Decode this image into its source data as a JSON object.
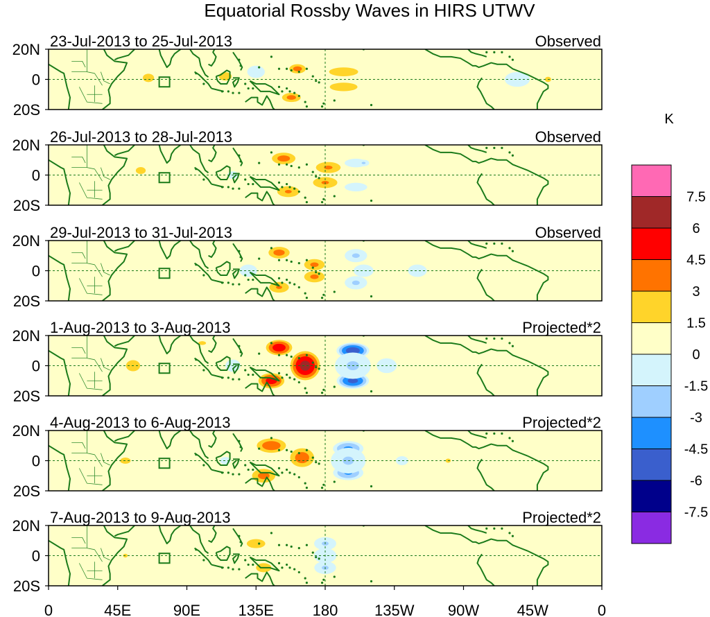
{
  "chart_data": {
    "type": "heatmap",
    "title": "Equatorial Rossby Waves in HIRS UTWV",
    "colorbar_unit": "K",
    "x_ticks": [
      "0",
      "45E",
      "90E",
      "135E",
      "180",
      "135W",
      "90W",
      "45W",
      "0"
    ],
    "x_tick_values": [
      0,
      45,
      90,
      135,
      180,
      225,
      270,
      315,
      360
    ],
    "y_ticks": [
      "20N",
      "0",
      "20S"
    ],
    "y_tick_values": [
      20,
      0,
      -20
    ],
    "xlim": [
      0,
      360
    ],
    "ylim": [
      -20,
      20
    ],
    "colorbar": {
      "labels": [
        "7.5",
        "6",
        "4.5",
        "3",
        "1.5",
        "0",
        "-1.5",
        "-3",
        "-4.5",
        "-6",
        "-7.5"
      ],
      "levels": [
        -7.5,
        -6,
        -4.5,
        -3,
        -1.5,
        0,
        1.5,
        3,
        4.5,
        6,
        7.5
      ],
      "colors": [
        "#8a2be2",
        "#00008b",
        "#3a5fcd",
        "#1e90ff",
        "#9fcfff",
        "#d4f4fc",
        "#ffffc8",
        "#ffd42a",
        "#ff7300",
        "#ff0000",
        "#a02828",
        "#ff69b4"
      ]
    },
    "panels": [
      {
        "period": "23-Jul-2013 to 25-Jul-2013",
        "kind": "Observed",
        "blobs": [
          {
            "lon": 162,
            "lat": 7,
            "value": 3.6,
            "w": 7,
            "h": 4
          },
          {
            "lon": 158,
            "lat": -12,
            "value": 3.5,
            "w": 8,
            "h": 4
          },
          {
            "lon": 192,
            "lat": 5,
            "value": 2.3,
            "w": 16,
            "h": 5
          },
          {
            "lon": 192,
            "lat": -5,
            "value": 2.2,
            "w": 16,
            "h": 5
          },
          {
            "lon": 65,
            "lat": 1,
            "value": 1.9,
            "w": 8,
            "h": 6
          },
          {
            "lon": 115,
            "lat": 2,
            "value": 1.7,
            "w": 12,
            "h": 8
          },
          {
            "lon": 135,
            "lat": 5,
            "value": -1.8,
            "w": 14,
            "h": 10
          },
          {
            "lon": 305,
            "lat": 0,
            "value": -1.8,
            "w": 20,
            "h": 12
          },
          {
            "lon": 30,
            "lat": 0,
            "value": -1.0,
            "w": 22,
            "h": 16
          },
          {
            "lon": 260,
            "lat": 10,
            "value": -1.0,
            "w": 30,
            "h": 8
          },
          {
            "lon": 325,
            "lat": 0,
            "value": 1.7,
            "w": 6,
            "h": 5
          }
        ]
      },
      {
        "period": "26-Jul-2013 to 28-Jul-2013",
        "kind": "Observed",
        "blobs": [
          {
            "lon": 153,
            "lat": 11,
            "value": 3.6,
            "w": 10,
            "h": 5
          },
          {
            "lon": 182,
            "lat": 5,
            "value": 3.2,
            "w": 11,
            "h": 5
          },
          {
            "lon": 180,
            "lat": -5,
            "value": 3.1,
            "w": 11,
            "h": 5
          },
          {
            "lon": 156,
            "lat": -11,
            "value": 3.1,
            "w": 10,
            "h": 5
          },
          {
            "lon": 200,
            "lat": 8,
            "value": -1.8,
            "w": 18,
            "h": 7
          },
          {
            "lon": 200,
            "lat": -8,
            "value": -1.8,
            "w": 18,
            "h": 7
          },
          {
            "lon": 205,
            "lat": 8,
            "value": -3.2,
            "w": 5,
            "h": 3
          },
          {
            "lon": 60,
            "lat": 3,
            "value": 1.9,
            "w": 7,
            "h": 5
          },
          {
            "lon": 120,
            "lat": 0,
            "value": -1.6,
            "w": 14,
            "h": 10
          },
          {
            "lon": 30,
            "lat": 0,
            "value": -1.0,
            "w": 22,
            "h": 16
          },
          {
            "lon": 305,
            "lat": 5,
            "value": -1.0,
            "w": 25,
            "h": 14
          }
        ]
      },
      {
        "period": "29-Jul-2013 to 31-Jul-2013",
        "kind": "Observed",
        "blobs": [
          {
            "lon": 150,
            "lat": 12,
            "value": 3.6,
            "w": 9,
            "h": 5
          },
          {
            "lon": 173,
            "lat": 4,
            "value": 3.3,
            "w": 9,
            "h": 5
          },
          {
            "lon": 173,
            "lat": -4,
            "value": 3.3,
            "w": 9,
            "h": 5
          },
          {
            "lon": 150,
            "lat": -11,
            "value": 3.0,
            "w": 9,
            "h": 5
          },
          {
            "lon": 200,
            "lat": 10,
            "value": -3.2,
            "w": 10,
            "h": 6
          },
          {
            "lon": 200,
            "lat": -8,
            "value": -3.2,
            "w": 10,
            "h": 6
          },
          {
            "lon": 205,
            "lat": 0,
            "value": -1.8,
            "w": 16,
            "h": 10
          },
          {
            "lon": 130,
            "lat": 0,
            "value": -1.8,
            "w": 14,
            "h": 10
          },
          {
            "lon": 240,
            "lat": 0,
            "value": -1.8,
            "w": 15,
            "h": 10
          },
          {
            "lon": 30,
            "lat": 0,
            "value": -1.0,
            "w": 22,
            "h": 16
          },
          {
            "lon": 60,
            "lat": 0,
            "value": 1.2,
            "w": 8,
            "h": 6
          }
        ]
      },
      {
        "period": "1-Aug-2013 to 3-Aug-2013",
        "kind": "Projected*2",
        "blobs": [
          {
            "lon": 150,
            "lat": 12,
            "value": 5.5,
            "w": 10,
            "h": 6
          },
          {
            "lon": 167,
            "lat": 0,
            "value": 6.6,
            "w": 11,
            "h": 11
          },
          {
            "lon": 145,
            "lat": -10,
            "value": 5.2,
            "w": 10,
            "h": 6
          },
          {
            "lon": 198,
            "lat": 10,
            "value": -7.0,
            "w": 12,
            "h": 6
          },
          {
            "lon": 198,
            "lat": -10,
            "value": -6.5,
            "w": 12,
            "h": 6
          },
          {
            "lon": 198,
            "lat": 0,
            "value": -3.2,
            "w": 16,
            "h": 12
          },
          {
            "lon": 220,
            "lat": 0,
            "value": -1.8,
            "w": 16,
            "h": 12
          },
          {
            "lon": 120,
            "lat": 0,
            "value": -1.8,
            "w": 12,
            "h": 10
          },
          {
            "lon": 55,
            "lat": 0,
            "value": 1.9,
            "w": 10,
            "h": 8
          },
          {
            "lon": 100,
            "lat": 15,
            "value": 1.6,
            "w": 10,
            "h": 5
          },
          {
            "lon": 300,
            "lat": 0,
            "value": 1.2,
            "w": 14,
            "h": 8
          },
          {
            "lon": 30,
            "lat": 0,
            "value": -1.0,
            "w": 22,
            "h": 16
          }
        ]
      },
      {
        "period": "4-Aug-2013 to 6-Aug-2013",
        "kind": "Projected*2",
        "blobs": [
          {
            "lon": 145,
            "lat": 10,
            "value": 4.0,
            "w": 12,
            "h": 6
          },
          {
            "lon": 165,
            "lat": 2,
            "value": 3.8,
            "w": 10,
            "h": 8
          },
          {
            "lon": 140,
            "lat": -10,
            "value": 3.5,
            "w": 10,
            "h": 6
          },
          {
            "lon": 195,
            "lat": 8,
            "value": -4.8,
            "w": 12,
            "h": 6
          },
          {
            "lon": 195,
            "lat": -8,
            "value": -4.6,
            "w": 12,
            "h": 6
          },
          {
            "lon": 195,
            "lat": 0,
            "value": -3.0,
            "w": 16,
            "h": 12
          },
          {
            "lon": 230,
            "lat": 0,
            "value": -1.6,
            "w": 16,
            "h": 12
          },
          {
            "lon": 50,
            "lat": 0,
            "value": 1.7,
            "w": 10,
            "h": 6
          },
          {
            "lon": 115,
            "lat": 0,
            "value": -1.6,
            "w": 14,
            "h": 10
          },
          {
            "lon": 260,
            "lat": 0,
            "value": 1.7,
            "w": 5,
            "h": 4
          },
          {
            "lon": 30,
            "lat": 0,
            "value": -1.0,
            "w": 22,
            "h": 16
          }
        ]
      },
      {
        "period": "7-Aug-2013 to 9-Aug-2013",
        "kind": "Projected*2",
        "blobs": [
          {
            "lon": 135,
            "lat": 8,
            "value": 2.0,
            "w": 12,
            "h": 6
          },
          {
            "lon": 140,
            "lat": -8,
            "value": 2.0,
            "w": 10,
            "h": 6
          },
          {
            "lon": 180,
            "lat": 8,
            "value": -3.1,
            "w": 10,
            "h": 6
          },
          {
            "lon": 180,
            "lat": -8,
            "value": -3.0,
            "w": 10,
            "h": 6
          },
          {
            "lon": 180,
            "lat": 0,
            "value": -1.8,
            "w": 18,
            "h": 12
          },
          {
            "lon": 50,
            "lat": 0,
            "value": 1.6,
            "w": 6,
            "h": 5
          },
          {
            "lon": 85,
            "lat": 0,
            "value": -1.2,
            "w": 16,
            "h": 10
          },
          {
            "lon": 340,
            "lat": 0,
            "value": 1.2,
            "w": 5,
            "h": 4
          },
          {
            "lon": 30,
            "lat": 0,
            "value": -1.0,
            "w": 22,
            "h": 16
          }
        ]
      }
    ]
  }
}
